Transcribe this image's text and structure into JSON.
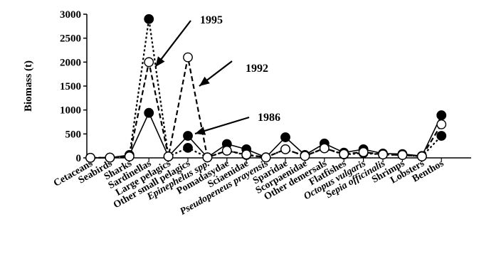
{
  "chart_data": {
    "type": "line",
    "ylabel": "Biomass (t)",
    "ylim": [
      0,
      3000
    ],
    "yticks": [
      0,
      500,
      1000,
      1500,
      2000,
      2500,
      3000
    ],
    "categories": [
      "Cetaceans",
      "Seabirds",
      "Sharks",
      "Sardinellas",
      "Large pelagics",
      "Other small pelagics",
      "Epinephelus spp.",
      "Pomadasydae",
      "Sciaenidae",
      "Pseudopeneus prayensis",
      "Sparidae",
      "Scorpaenidae",
      "Other demersals",
      "Flatfishes",
      "Octopus vulgaris",
      "Sepia officinalis",
      "Shrimps",
      "Lobsters",
      "Benthos"
    ],
    "italic_categories": [
      "Epinephelus spp.",
      "Pseudopeneus prayensis",
      "Octopus vulgaris",
      "Sepia officinalis"
    ],
    "series": [
      {
        "label": "1986",
        "line": "solid",
        "marker": "filled-circle",
        "values": [
          2,
          5,
          60,
          940,
          30,
          460,
          10,
          290,
          180,
          10,
          430,
          60,
          300,
          110,
          180,
          90,
          80,
          40,
          890
        ]
      },
      {
        "label": "1992",
        "line": "dashed",
        "marker": "open-circle",
        "values": [
          2,
          5,
          30,
          2000,
          30,
          2100,
          10,
          150,
          70,
          10,
          180,
          40,
          200,
          80,
          120,
          70,
          60,
          30,
          700
        ]
      },
      {
        "label": "1995",
        "line": "dotted",
        "marker": "filled-circle",
        "values": [
          2,
          5,
          30,
          2900,
          30,
          210,
          10,
          150,
          60,
          10,
          180,
          40,
          200,
          70,
          100,
          70,
          60,
          30,
          460
        ]
      }
    ],
    "grid": false,
    "legend": "none"
  }
}
